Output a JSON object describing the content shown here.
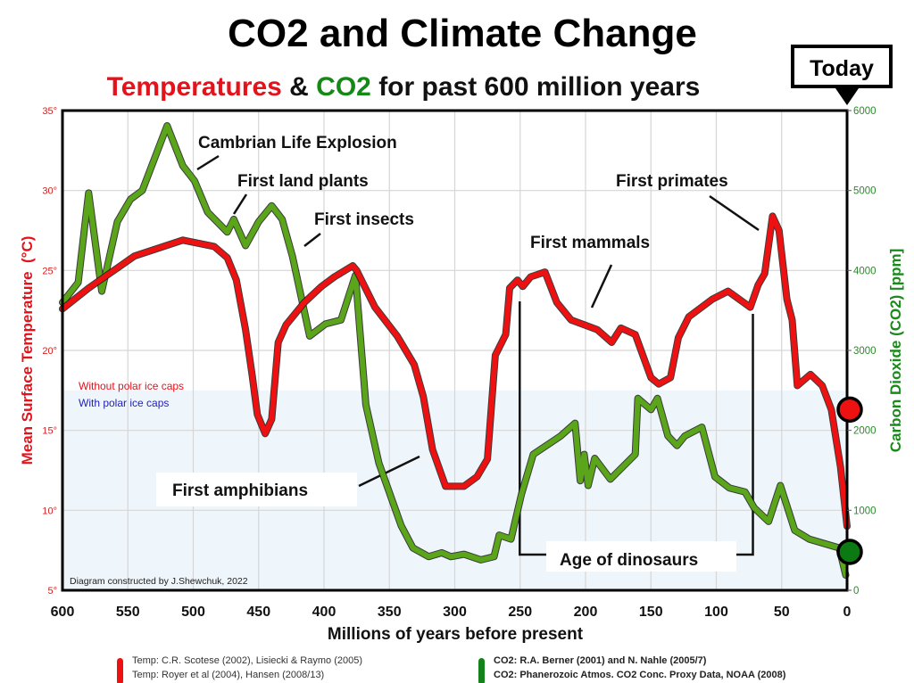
{
  "header": {
    "title": "CO2 and Climate Change",
    "subtitle_parts": [
      {
        "text": "Temperatures",
        "color": "#e4121b"
      },
      {
        "text": " & ",
        "color": "#111111"
      },
      {
        "text": "CO2",
        "color": "#138a16"
      },
      {
        "text": " for past 600 million years",
        "color": "#111111"
      }
    ],
    "today_label": "Today"
  },
  "chart_data": {
    "type": "line",
    "title": "CO2 and Climate Change",
    "subtitle": "Temperatures & CO2 for past 600 million years",
    "xlabel": "Millions of years before present",
    "ylabel_left": "Mean Surface Temperature  (°C)",
    "ylabel_right": "Carbon Dioxide (CO2) [ppm]",
    "xlim": [
      600,
      0
    ],
    "ylim_left": [
      5,
      35
    ],
    "ylim_right": [
      0,
      6000
    ],
    "x_ticks": [
      "600",
      "550",
      "500",
      "450",
      "400",
      "350",
      "300",
      "250",
      "200",
      "150",
      "100",
      "50",
      "0"
    ],
    "x_tick_values": [
      600,
      550,
      500,
      450,
      400,
      350,
      300,
      250,
      200,
      150,
      100,
      50,
      0
    ],
    "y_left_ticks": [
      "5°",
      "10°",
      "15°",
      "20°",
      "25°",
      "30°",
      "35°"
    ],
    "y_left_tick_values": [
      5,
      10,
      15,
      20,
      25,
      30,
      35
    ],
    "y_right_ticks": [
      "0",
      "1000",
      "2000",
      "3000",
      "4000",
      "5000",
      "6000"
    ],
    "y_right_tick_values": [
      0,
      1000,
      2000,
      3000,
      4000,
      5000,
      6000
    ],
    "grid": true,
    "ice_cap_band_max_temp": 17.5,
    "ice_cap_labels": [
      {
        "text": "Without polar ice caps",
        "color": "#e4121b"
      },
      {
        "text": "With polar ice caps",
        "color": "#2323b5"
      }
    ],
    "series": [
      {
        "name": "Temperature",
        "axis": "left",
        "color": "#ee1111",
        "x": [
          600,
          580,
          545,
          508,
          484,
          474,
          467,
          460,
          455,
          451,
          445,
          440,
          435,
          429,
          415,
          402,
          392,
          378,
          375,
          361,
          344,
          331,
          324,
          317,
          307,
          293,
          283,
          275,
          269,
          261,
          258,
          252,
          248,
          242,
          231,
          222,
          211,
          201,
          191,
          180,
          173,
          162,
          150,
          144,
          135,
          129,
          121,
          103,
          91,
          74,
          68,
          63,
          57,
          52,
          46,
          42,
          38,
          28,
          19,
          12,
          5,
          0
        ],
        "values": [
          22.6,
          23.9,
          25.9,
          26.9,
          26.5,
          25.8,
          24.4,
          21.3,
          18.5,
          16.0,
          14.8,
          15.7,
          20.5,
          21.6,
          23.0,
          24.0,
          24.6,
          25.3,
          25.0,
          22.7,
          20.9,
          19.1,
          17.1,
          13.8,
          11.5,
          11.5,
          12.1,
          13.2,
          19.7,
          21.0,
          23.9,
          24.4,
          24.0,
          24.6,
          24.9,
          23.0,
          21.9,
          21.6,
          21.3,
          20.5,
          21.4,
          21.0,
          18.3,
          17.9,
          18.3,
          20.8,
          22.1,
          23.2,
          23.7,
          22.7,
          24.1,
          24.8,
          28.4,
          27.5,
          23.2,
          21.9,
          17.8,
          18.5,
          17.8,
          16.3,
          12.7,
          9.0
        ]
      },
      {
        "name": "CO2",
        "axis": "right",
        "color": "#5aa51a",
        "x": [
          600,
          588,
          580,
          570,
          558,
          548,
          539,
          520,
          508,
          499,
          489,
          474,
          469,
          460,
          450,
          440,
          432,
          424,
          411,
          399,
          387,
          376,
          368,
          358,
          341,
          332,
          320,
          310,
          303,
          293,
          280,
          270,
          266,
          257,
          249,
          240,
          219,
          208,
          204,
          201,
          198,
          193,
          181,
          162,
          160,
          150,
          145,
          137,
          130,
          124,
          111,
          101,
          90,
          78,
          71,
          60,
          51,
          40,
          29,
          6,
          1
        ],
        "values": [
          3600,
          3850,
          4970,
          3740,
          4610,
          4890,
          5000,
          5810,
          5310,
          5120,
          4730,
          4480,
          4640,
          4310,
          4610,
          4810,
          4640,
          4170,
          3180,
          3330,
          3380,
          3940,
          2320,
          1590,
          810,
          530,
          420,
          470,
          420,
          450,
          380,
          420,
          690,
          640,
          1200,
          1700,
          1930,
          2090,
          1370,
          1700,
          1310,
          1650,
          1390,
          1700,
          2400,
          2260,
          2400,
          1930,
          1810,
          1930,
          2040,
          1420,
          1280,
          1230,
          1030,
          860,
          1310,
          750,
          640,
          530,
          190
        ]
      }
    ],
    "markers": [
      {
        "name": "today-temperature",
        "x": 0,
        "value": 16.3,
        "axis": "left",
        "color": "#ee1111"
      },
      {
        "name": "today-co2",
        "x": 0,
        "value": 480,
        "axis": "right",
        "color": "#0b7a12"
      }
    ],
    "annotations": [
      {
        "text": "Cambrian Life Explosion",
        "x": 520
      },
      {
        "text": "First land plants",
        "x": 470
      },
      {
        "text": "First insects",
        "x": 420
      },
      {
        "text": "First amphibians",
        "x": 345
      },
      {
        "text": "First mammals",
        "x": 200
      },
      {
        "text": "First primates",
        "x": 60
      },
      {
        "text": "Age of dinosaurs",
        "range": [
          251,
          72
        ]
      }
    ],
    "credit": "Diagram constructed by J.Shewchuk, 2022",
    "legend": {
      "placement": "bottom",
      "temperature_sources": [
        "Temp: C.R. Scotese (2002), Lisiecki & Raymo (2005)",
        "Temp: Royer et al (2004), Hansen (2008/13)"
      ],
      "co2_sources": [
        "CO2: R.A. Berner (2001) and N. Nahle (2005/7)",
        "CO2: Phanerozoic Atmos. CO2 Conc. Proxy Data, NOAA (2008)"
      ]
    }
  }
}
